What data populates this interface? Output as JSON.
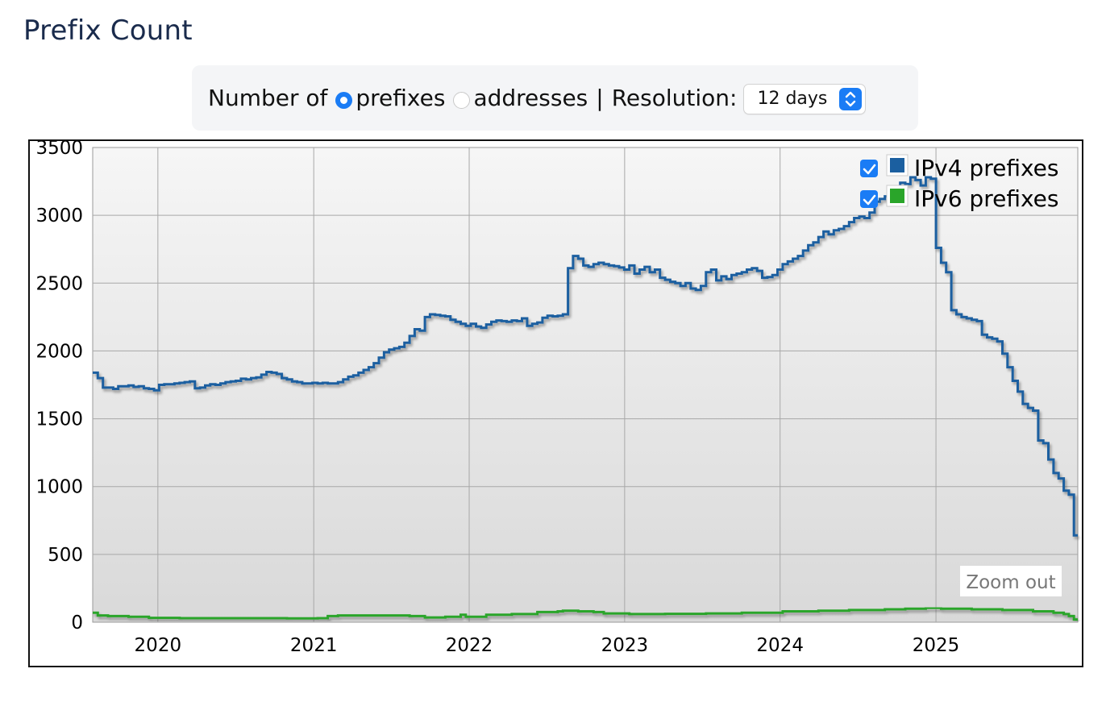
{
  "page": {
    "title": "Prefix Count"
  },
  "controls": {
    "number_of_label": "Number of",
    "option_prefixes": "prefixes",
    "option_addresses": "addresses",
    "separator": "|",
    "resolution_label": "Resolution:",
    "resolution_value": "12 days",
    "selected_option": "prefixes",
    "accent_color": "#1a7cf5"
  },
  "zoom_out_label": "Zoom out",
  "chart_data": {
    "type": "line",
    "step": true,
    "x_axis": {
      "type": "date",
      "ticks": [
        "2020",
        "2021",
        "2022",
        "2023",
        "2024",
        "2025"
      ]
    },
    "ylim": [
      0,
      3500
    ],
    "yticks": [
      0,
      500,
      1000,
      1500,
      2000,
      2500,
      3000,
      3500
    ],
    "grid": true,
    "legend_position": "top-right",
    "series": [
      {
        "name": "IPv4 prefixes",
        "color": "#1b5fa0",
        "checked": true,
        "points": [
          [
            "2019-08-01",
            1840
          ],
          [
            "2019-08-13",
            1800
          ],
          [
            "2019-08-25",
            1730
          ],
          [
            "2019-09-06",
            1730
          ],
          [
            "2019-09-18",
            1720
          ],
          [
            "2019-09-30",
            1740
          ],
          [
            "2019-10-12",
            1740
          ],
          [
            "2019-10-24",
            1745
          ],
          [
            "2019-11-05",
            1735
          ],
          [
            "2019-11-17",
            1740
          ],
          [
            "2019-11-29",
            1725
          ],
          [
            "2019-12-11",
            1720
          ],
          [
            "2019-12-23",
            1710
          ],
          [
            "2020-01-04",
            1750
          ],
          [
            "2020-01-16",
            1755
          ],
          [
            "2020-01-28",
            1755
          ],
          [
            "2020-02-09",
            1760
          ],
          [
            "2020-02-21",
            1765
          ],
          [
            "2020-03-04",
            1770
          ],
          [
            "2020-03-16",
            1775
          ],
          [
            "2020-03-28",
            1725
          ],
          [
            "2020-04-09",
            1730
          ],
          [
            "2020-04-21",
            1745
          ],
          [
            "2020-05-03",
            1755
          ],
          [
            "2020-05-15",
            1750
          ],
          [
            "2020-05-27",
            1760
          ],
          [
            "2020-06-08",
            1770
          ],
          [
            "2020-06-20",
            1775
          ],
          [
            "2020-07-02",
            1780
          ],
          [
            "2020-07-14",
            1795
          ],
          [
            "2020-07-26",
            1790
          ],
          [
            "2020-08-07",
            1800
          ],
          [
            "2020-08-19",
            1805
          ],
          [
            "2020-08-31",
            1825
          ],
          [
            "2020-09-12",
            1845
          ],
          [
            "2020-09-24",
            1840
          ],
          [
            "2020-10-06",
            1830
          ],
          [
            "2020-10-18",
            1800
          ],
          [
            "2020-10-30",
            1790
          ],
          [
            "2020-11-11",
            1775
          ],
          [
            "2020-11-23",
            1770
          ],
          [
            "2020-12-05",
            1760
          ],
          [
            "2020-12-17",
            1760
          ],
          [
            "2020-12-29",
            1765
          ],
          [
            "2021-01-10",
            1760
          ],
          [
            "2021-01-22",
            1765
          ],
          [
            "2021-02-03",
            1760
          ],
          [
            "2021-02-15",
            1760
          ],
          [
            "2021-02-27",
            1770
          ],
          [
            "2021-03-11",
            1790
          ],
          [
            "2021-03-23",
            1810
          ],
          [
            "2021-04-04",
            1820
          ],
          [
            "2021-04-16",
            1840
          ],
          [
            "2021-04-28",
            1860
          ],
          [
            "2021-05-10",
            1880
          ],
          [
            "2021-05-22",
            1910
          ],
          [
            "2021-06-03",
            1950
          ],
          [
            "2021-06-15",
            1990
          ],
          [
            "2021-06-27",
            2010
          ],
          [
            "2021-07-09",
            2020
          ],
          [
            "2021-07-21",
            2030
          ],
          [
            "2021-08-02",
            2060
          ],
          [
            "2021-08-14",
            2110
          ],
          [
            "2021-08-26",
            2160
          ],
          [
            "2021-09-07",
            2150
          ],
          [
            "2021-09-19",
            2250
          ],
          [
            "2021-10-01",
            2270
          ],
          [
            "2021-10-13",
            2265
          ],
          [
            "2021-10-25",
            2260
          ],
          [
            "2021-11-06",
            2255
          ],
          [
            "2021-11-18",
            2230
          ],
          [
            "2021-11-30",
            2215
          ],
          [
            "2021-12-12",
            2200
          ],
          [
            "2021-12-24",
            2185
          ],
          [
            "2022-01-05",
            2200
          ],
          [
            "2022-01-17",
            2180
          ],
          [
            "2022-01-29",
            2170
          ],
          [
            "2022-02-10",
            2195
          ],
          [
            "2022-02-22",
            2215
          ],
          [
            "2022-03-06",
            2225
          ],
          [
            "2022-03-18",
            2220
          ],
          [
            "2022-03-30",
            2215
          ],
          [
            "2022-04-11",
            2225
          ],
          [
            "2022-04-23",
            2220
          ],
          [
            "2022-05-05",
            2240
          ],
          [
            "2022-05-17",
            2185
          ],
          [
            "2022-05-29",
            2200
          ],
          [
            "2022-06-10",
            2210
          ],
          [
            "2022-06-22",
            2245
          ],
          [
            "2022-07-04",
            2260
          ],
          [
            "2022-07-16",
            2255
          ],
          [
            "2022-07-28",
            2260
          ],
          [
            "2022-08-09",
            2270
          ],
          [
            "2022-08-21",
            2610
          ],
          [
            "2022-09-02",
            2700
          ],
          [
            "2022-09-14",
            2680
          ],
          [
            "2022-09-26",
            2630
          ],
          [
            "2022-10-08",
            2620
          ],
          [
            "2022-10-20",
            2640
          ],
          [
            "2022-11-01",
            2650
          ],
          [
            "2022-11-13",
            2640
          ],
          [
            "2022-11-25",
            2630
          ],
          [
            "2022-12-07",
            2625
          ],
          [
            "2022-12-19",
            2615
          ],
          [
            "2022-12-31",
            2600
          ],
          [
            "2023-01-12",
            2630
          ],
          [
            "2023-01-24",
            2570
          ],
          [
            "2023-02-05",
            2600
          ],
          [
            "2023-02-17",
            2620
          ],
          [
            "2023-03-01",
            2580
          ],
          [
            "2023-03-13",
            2600
          ],
          [
            "2023-03-25",
            2540
          ],
          [
            "2023-04-06",
            2525
          ],
          [
            "2023-04-18",
            2510
          ],
          [
            "2023-04-30",
            2500
          ],
          [
            "2023-05-12",
            2480
          ],
          [
            "2023-05-24",
            2500
          ],
          [
            "2023-06-05",
            2460
          ],
          [
            "2023-06-17",
            2450
          ],
          [
            "2023-06-29",
            2480
          ],
          [
            "2023-07-11",
            2580
          ],
          [
            "2023-07-23",
            2600
          ],
          [
            "2023-08-04",
            2520
          ],
          [
            "2023-08-16",
            2550
          ],
          [
            "2023-08-28",
            2530
          ],
          [
            "2023-09-09",
            2560
          ],
          [
            "2023-09-21",
            2570
          ],
          [
            "2023-10-03",
            2580
          ],
          [
            "2023-10-15",
            2600
          ],
          [
            "2023-10-27",
            2610
          ],
          [
            "2023-11-08",
            2590
          ],
          [
            "2023-11-20",
            2540
          ],
          [
            "2023-12-02",
            2545
          ],
          [
            "2023-12-14",
            2560
          ],
          [
            "2023-12-26",
            2600
          ],
          [
            "2024-01-07",
            2640
          ],
          [
            "2024-01-19",
            2660
          ],
          [
            "2024-01-31",
            2680
          ],
          [
            "2024-02-12",
            2700
          ],
          [
            "2024-02-24",
            2740
          ],
          [
            "2024-03-07",
            2780
          ],
          [
            "2024-03-19",
            2800
          ],
          [
            "2024-03-31",
            2840
          ],
          [
            "2024-04-12",
            2880
          ],
          [
            "2024-04-24",
            2860
          ],
          [
            "2024-05-06",
            2890
          ],
          [
            "2024-05-18",
            2900
          ],
          [
            "2024-05-30",
            2920
          ],
          [
            "2024-06-11",
            2950
          ],
          [
            "2024-06-23",
            2980
          ],
          [
            "2024-07-05",
            2990
          ],
          [
            "2024-07-17",
            2980
          ],
          [
            "2024-07-29",
            3020
          ],
          [
            "2024-08-10",
            3100
          ],
          [
            "2024-08-22",
            3120
          ],
          [
            "2024-09-03",
            3140
          ],
          [
            "2024-09-15",
            3180
          ],
          [
            "2024-09-27",
            3200
          ],
          [
            "2024-10-09",
            3240
          ],
          [
            "2024-10-21",
            3230
          ],
          [
            "2024-11-02",
            3280
          ],
          [
            "2024-11-14",
            3260
          ],
          [
            "2024-11-26",
            3220
          ],
          [
            "2024-12-08",
            3280
          ],
          [
            "2024-12-20",
            3270
          ],
          [
            "2025-01-01",
            2760
          ],
          [
            "2025-01-13",
            2650
          ],
          [
            "2025-01-25",
            2580
          ],
          [
            "2025-02-06",
            2300
          ],
          [
            "2025-02-18",
            2270
          ],
          [
            "2025-03-02",
            2250
          ],
          [
            "2025-03-14",
            2240
          ],
          [
            "2025-03-26",
            2230
          ],
          [
            "2025-04-07",
            2220
          ],
          [
            "2025-04-19",
            2120
          ],
          [
            "2025-05-01",
            2100
          ],
          [
            "2025-05-13",
            2090
          ],
          [
            "2025-05-25",
            2070
          ],
          [
            "2025-06-06",
            1980
          ],
          [
            "2025-06-18",
            1880
          ],
          [
            "2025-06-30",
            1780
          ],
          [
            "2025-07-12",
            1700
          ],
          [
            "2025-07-24",
            1610
          ],
          [
            "2025-08-05",
            1580
          ],
          [
            "2025-08-17",
            1560
          ],
          [
            "2025-08-29",
            1340
          ],
          [
            "2025-09-10",
            1320
          ],
          [
            "2025-09-22",
            1200
          ],
          [
            "2025-10-04",
            1100
          ],
          [
            "2025-10-16",
            1060
          ],
          [
            "2025-10-28",
            970
          ],
          [
            "2025-11-09",
            940
          ],
          [
            "2025-11-21",
            640
          ]
        ]
      },
      {
        "name": "IPv6 prefixes",
        "color": "#2aa52a",
        "checked": true,
        "points": [
          [
            "2019-08-01",
            70
          ],
          [
            "2019-08-13",
            50
          ],
          [
            "2019-09-06",
            45
          ],
          [
            "2019-10-24",
            40
          ],
          [
            "2019-12-11",
            32
          ],
          [
            "2020-02-21",
            30
          ],
          [
            "2020-06-20",
            30
          ],
          [
            "2020-10-30",
            28
          ],
          [
            "2021-01-10",
            30
          ],
          [
            "2021-02-03",
            45
          ],
          [
            "2021-02-27",
            50
          ],
          [
            "2021-05-10",
            50
          ],
          [
            "2021-08-14",
            45
          ],
          [
            "2021-09-19",
            35
          ],
          [
            "2021-11-06",
            40
          ],
          [
            "2021-12-12",
            55
          ],
          [
            "2021-12-24",
            40
          ],
          [
            "2022-02-10",
            55
          ],
          [
            "2022-04-11",
            60
          ],
          [
            "2022-06-10",
            75
          ],
          [
            "2022-07-28",
            80
          ],
          [
            "2022-08-09",
            85
          ],
          [
            "2022-09-14",
            80
          ],
          [
            "2022-10-20",
            75
          ],
          [
            "2022-11-13",
            65
          ],
          [
            "2023-01-12",
            60
          ],
          [
            "2023-04-06",
            62
          ],
          [
            "2023-07-11",
            65
          ],
          [
            "2023-10-03",
            70
          ],
          [
            "2024-01-07",
            80
          ],
          [
            "2024-03-31",
            85
          ],
          [
            "2024-06-11",
            90
          ],
          [
            "2024-09-03",
            95
          ],
          [
            "2024-10-21",
            100
          ],
          [
            "2024-12-08",
            105
          ],
          [
            "2025-01-13",
            100
          ],
          [
            "2025-03-26",
            95
          ],
          [
            "2025-06-06",
            90
          ],
          [
            "2025-08-17",
            80
          ],
          [
            "2025-10-04",
            70
          ],
          [
            "2025-10-28",
            60
          ],
          [
            "2025-11-09",
            45
          ],
          [
            "2025-11-21",
            20
          ]
        ]
      }
    ]
  }
}
